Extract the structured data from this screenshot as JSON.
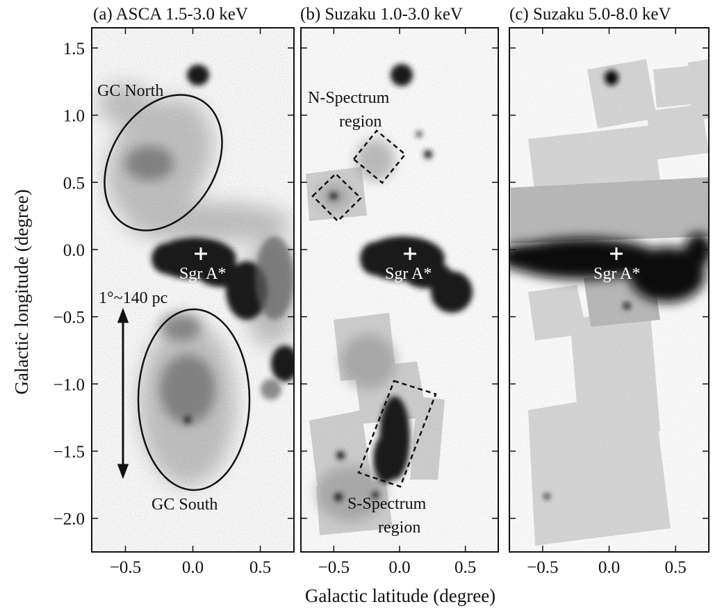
{
  "figure": {
    "x_axis_label": "Galactic latitude (degree)",
    "y_axis_label": "Galactic longitude (degree)",
    "x_ticks": [
      -0.5,
      0.0,
      0.5
    ],
    "x_tick_labels": [
      "−0.5",
      "0.0",
      "0.5"
    ],
    "y_ticks": [
      1.5,
      1.0,
      0.5,
      0.0,
      -0.5,
      -1.0,
      -1.5,
      -2.0
    ],
    "y_tick_labels": [
      "1.5",
      "1.0",
      "0.5",
      "0.0",
      "−0.5",
      "−1.0",
      "−1.5",
      "−2.0"
    ],
    "x_range": [
      -0.75,
      0.75
    ],
    "y_range": [
      -2.25,
      1.65
    ]
  },
  "panels": [
    {
      "title": "(a) ASCA 1.5-3.0 keV",
      "source_label": "Sgr A*",
      "region_labels": [
        "GC North",
        "GC South"
      ],
      "scale_label": "1°~140 pc"
    },
    {
      "title": "(b) Suzaku 1.0-3.0 keV",
      "source_label": "Sgr A*",
      "region_labels": [
        "N-Spectrum",
        "region",
        "S-Spectrum",
        "region"
      ]
    },
    {
      "title": "(c) Suzaku 5.0-8.0 keV",
      "source_label": "Sgr A*"
    }
  ],
  "colors": {
    "ink": "#111111",
    "background": "#ffffff",
    "emission": "#1a1a1a",
    "diffuse": "#9a9a9a"
  }
}
